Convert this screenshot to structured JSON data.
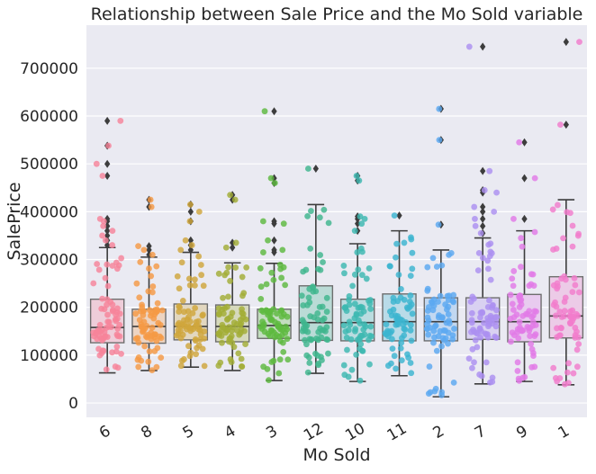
{
  "chart_data": {
    "type": "box",
    "title": "Relationship between Sale Price and the Mo Sold variable",
    "xlabel": "Mo Sold",
    "ylabel": "SalePrice",
    "ylim": [
      -30000,
      790000
    ],
    "yticks": [
      0,
      100000,
      200000,
      300000,
      400000,
      500000,
      600000,
      700000
    ],
    "ytick_labels": [
      "0",
      "100000",
      "200000",
      "300000",
      "400000",
      "500000",
      "600000",
      "700000"
    ],
    "grid": true,
    "overlay": "strip",
    "categories": [
      "6",
      "8",
      "5",
      "4",
      "3",
      "12",
      "10",
      "11",
      "2",
      "7",
      "9",
      "1"
    ],
    "colors": [
      "#f7849a",
      "#f59a46",
      "#cfa63c",
      "#a2ad36",
      "#5eba3f",
      "#3fb68e",
      "#3db8b1",
      "#3cb4cf",
      "#5ba8f0",
      "#ac90f0",
      "#e27ae6",
      "#f27ccc"
    ],
    "boxes": [
      {
        "category": "6",
        "whisker_low": 63000,
        "q1": 126000,
        "median": 158000,
        "q3": 217000,
        "whisker_high": 325000,
        "outliers": [
          330000,
          340000,
          350000,
          360000,
          370000,
          380000,
          385000,
          475000,
          500000,
          538000,
          590000
        ]
      },
      {
        "category": "8",
        "whisker_low": 68000,
        "q1": 125000,
        "median": 160000,
        "q3": 196000,
        "whisker_high": 305000,
        "outliers": [
          310000,
          320000,
          328000,
          410000,
          425000
        ]
      },
      {
        "category": "5",
        "whisker_low": 75000,
        "q1": 132000,
        "median": 160000,
        "q3": 207000,
        "whisker_high": 315000,
        "outliers": [
          320000,
          330000,
          340000,
          380000,
          400000,
          415000
        ]
      },
      {
        "category": "4",
        "whisker_low": 68000,
        "q1": 128000,
        "median": 160000,
        "q3": 205000,
        "whisker_high": 293000,
        "outliers": [
          325000,
          335000,
          425000,
          435000
        ]
      },
      {
        "category": "3",
        "whisker_low": 47000,
        "q1": 135000,
        "median": 162000,
        "q3": 196000,
        "whisker_high": 292000,
        "outliers": [
          315000,
          320000,
          340000,
          375000,
          380000,
          460000,
          470000,
          610000
        ]
      },
      {
        "category": "12",
        "whisker_low": 62000,
        "q1": 131000,
        "median": 168000,
        "q3": 245000,
        "whisker_high": 415000,
        "outliers": [
          490000
        ]
      },
      {
        "category": "10",
        "whisker_low": 45000,
        "q1": 130000,
        "median": 168000,
        "q3": 217000,
        "whisker_high": 333000,
        "outliers": [
          360000,
          375000,
          385000,
          390000,
          465000,
          475000
        ]
      },
      {
        "category": "11",
        "whisker_low": 57000,
        "q1": 130000,
        "median": 170000,
        "q3": 228000,
        "whisker_high": 360000,
        "outliers": [
          392000
        ]
      },
      {
        "category": "2",
        "whisker_low": 13000,
        "q1": 130000,
        "median": 170000,
        "q3": 220000,
        "whisker_high": 320000,
        "outliers": [
          373000,
          550000,
          615000
        ]
      },
      {
        "category": "7",
        "whisker_low": 40000,
        "q1": 133000,
        "median": 170000,
        "q3": 220000,
        "whisker_high": 345000,
        "outliers": [
          355000,
          370000,
          385000,
          400000,
          410000,
          440000,
          445000,
          485000,
          745000
        ]
      },
      {
        "category": "9",
        "whisker_low": 45000,
        "q1": 128000,
        "median": 170000,
        "q3": 227000,
        "whisker_high": 360000,
        "outliers": [
          385000,
          470000,
          545000
        ]
      },
      {
        "category": "1",
        "whisker_low": 38000,
        "q1": 136000,
        "median": 182000,
        "q3": 264000,
        "whisker_high": 425000,
        "outliers": [
          582000,
          755000
        ]
      }
    ]
  }
}
